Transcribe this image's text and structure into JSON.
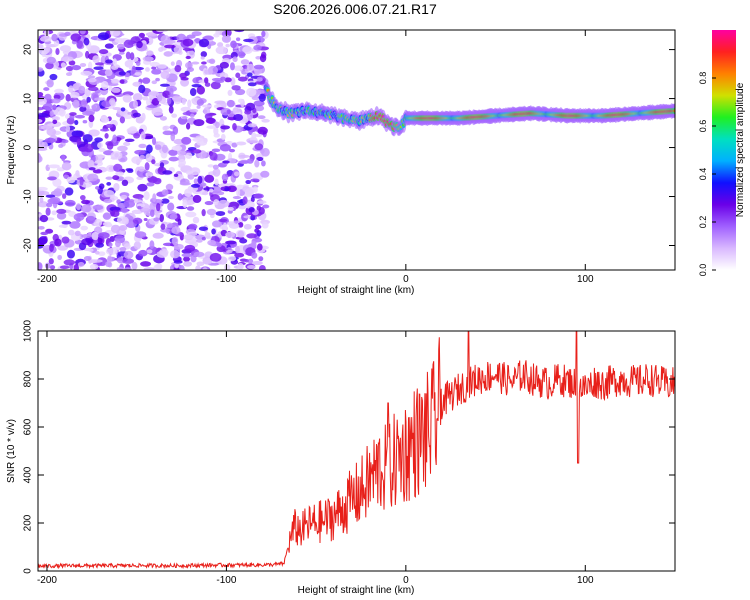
{
  "figure_title": "S206.2026.006.07.21.R17",
  "chart_data": [
    {
      "type": "heatmap",
      "name": "spectrogram",
      "xlabel": "Height of straight line (km)",
      "ylabel": "Frequency (Hz)",
      "xlim": [
        -205,
        150
      ],
      "ylim": [
        -25,
        24
      ],
      "xticks": [
        -200,
        -100,
        0,
        100
      ],
      "yticks": [
        -20,
        -10,
        0,
        10,
        20
      ],
      "grid": false,
      "description_values": {
        "noise_region_x": [
          -205,
          -78
        ],
        "signal_ridge": {
          "x": [
            -78,
            -72,
            -65,
            -55,
            -45,
            -35,
            -25,
            -15,
            -8,
            -3,
            0,
            10,
            30,
            50,
            70,
            90,
            110,
            130,
            150
          ],
          "freq": [
            12,
            8,
            7,
            7.5,
            7,
            6,
            5.5,
            6.5,
            4.5,
            4,
            6,
            6,
            6,
            6.5,
            7,
            6.5,
            6.5,
            7,
            7.5
          ]
        }
      },
      "colorbar": {
        "label": "Normalized spectral amplitude",
        "range": [
          0,
          1
        ],
        "ticks": [
          0.0,
          0.2,
          0.4,
          0.6,
          0.8
        ],
        "tick_labels": [
          "0.0",
          "0.2",
          "0.4",
          "0.6",
          "0.8"
        ],
        "colormap": [
          "#ffffff",
          "#d9b8ff",
          "#a060ff",
          "#6a00e8",
          "#1010ff",
          "#00b0ff",
          "#00e0c0",
          "#20f020",
          "#d0e000",
          "#ff8000",
          "#ff2020",
          "#ff00a0"
        ]
      }
    },
    {
      "type": "line",
      "name": "snr",
      "xlabel": "Height of straight line (km)",
      "ylabel": "SNR (10 * v/v)",
      "xlim": [
        -205,
        150
      ],
      "ylim": [
        0,
        1000
      ],
      "xticks": [
        -200,
        -100,
        0,
        100
      ],
      "yticks": [
        0,
        200,
        400,
        600,
        800,
        1000
      ],
      "grid": false,
      "color": "#e8201a",
      "series": [
        {
          "name": "SNR",
          "x": [
            -205,
            -190,
            -170,
            -150,
            -130,
            -110,
            -90,
            -75,
            -68,
            -65,
            -62,
            -58,
            -55,
            -50,
            -45,
            -40,
            -35,
            -30,
            -25,
            -20,
            -15,
            -10,
            -5,
            0,
            5,
            10,
            15,
            20,
            25,
            30,
            35,
            40,
            45,
            50,
            55,
            60,
            65,
            70,
            75,
            80,
            85,
            90,
            95,
            100,
            105,
            110,
            115,
            120,
            125,
            130,
            135,
            140,
            145,
            150
          ],
          "y": [
            20,
            22,
            22,
            23,
            22,
            24,
            25,
            26,
            30,
            120,
            180,
            170,
            190,
            200,
            210,
            230,
            260,
            300,
            330,
            380,
            430,
            420,
            470,
            500,
            540,
            560,
            600,
            700,
            730,
            760,
            780,
            800,
            810,
            820,
            800,
            790,
            820,
            800,
            790,
            780,
            800,
            790,
            780,
            760,
            790,
            780,
            790,
            800,
            790,
            790,
            800,
            790,
            780,
            780
          ]
        }
      ],
      "spikes": [
        {
          "x": 35,
          "y": 1000
        },
        {
          "x": 95,
          "y": 1000
        },
        {
          "x": 96,
          "y": 450
        },
        {
          "x": -10,
          "y": 700
        }
      ]
    }
  ]
}
